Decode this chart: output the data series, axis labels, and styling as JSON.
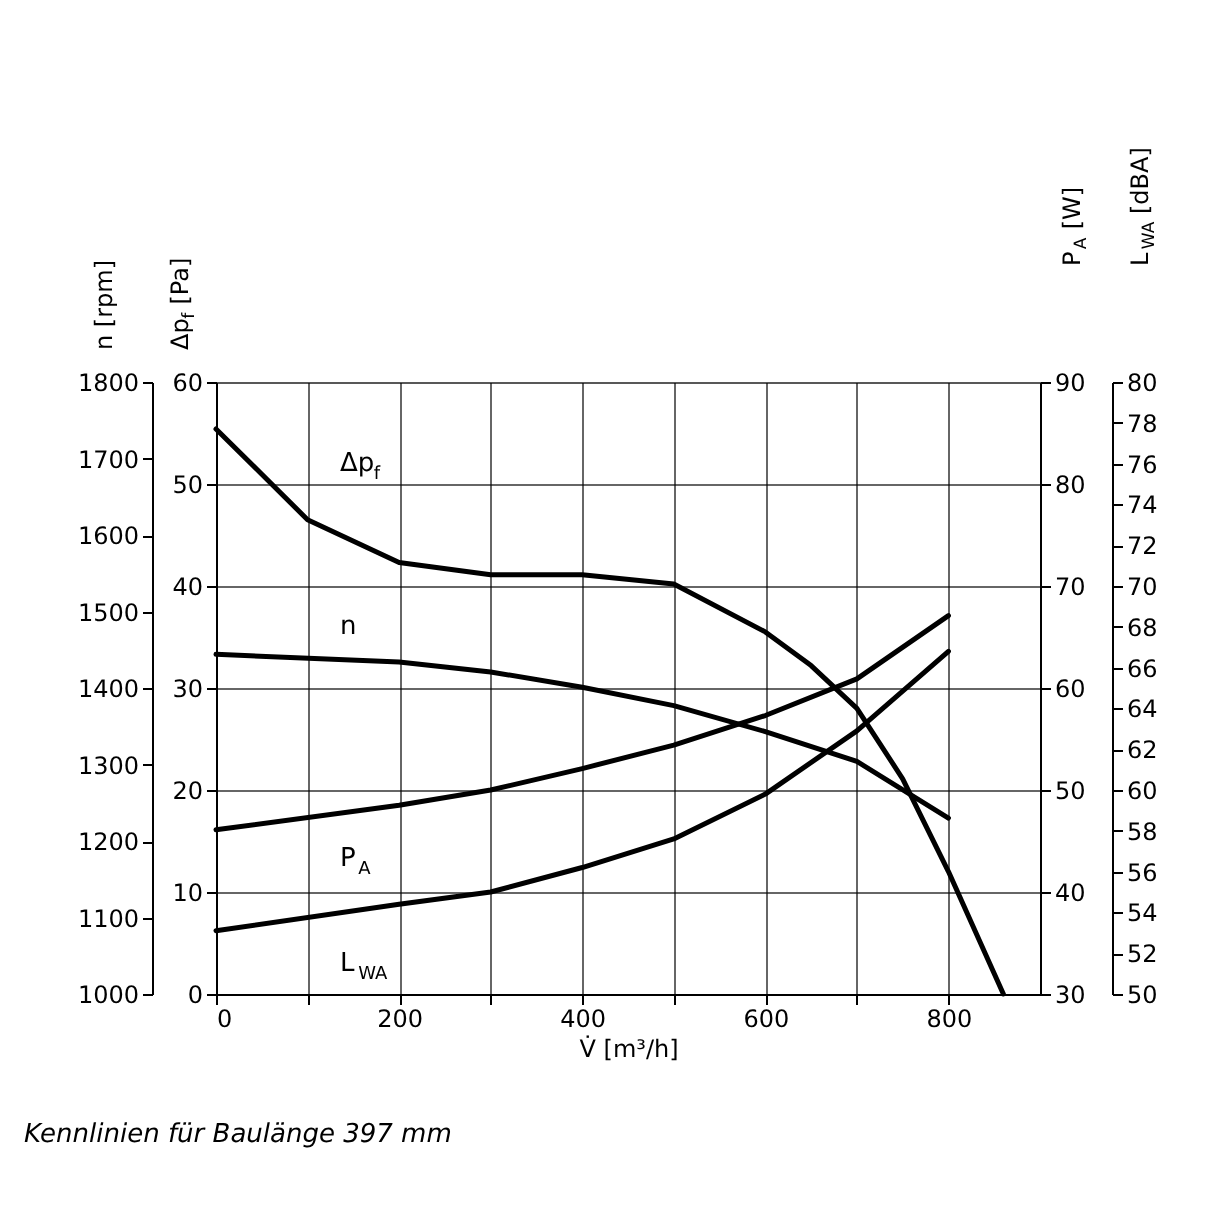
{
  "chart_data": [
    {
      "type": "line",
      "xlabel": "V̇ [m³/h]",
      "ylabel": "Δp$_{f}$ [Pa]",
      "y2label": "n [rpm]",
      "annotations": [
        "Kennlinien für Baulänge 397 mm"
      ],
      "xlim": [
        0,
        900
      ],
      "xticks": [
        0,
        {
          "value": 100,
          "label": null
        },
        200,
        {
          "value": 300,
          "label": null
        },
        400,
        {
          "value": 500,
          "label": null
        },
        600,
        {
          "value": 700,
          "label": null
        },
        800
      ],
      "ylim": [
        0,
        60
      ],
      "yticks": [
        0,
        10,
        20,
        30,
        40,
        50,
        60
      ],
      "y2lim": [
        1000,
        1800
      ],
      "y2ticks": [
        1000,
        1100,
        1200,
        1300,
        1400,
        1500,
        1600,
        1700,
        1800
      ],
      "grid": true,
      "marker": "none",
      "line_style": "solid",
      "series": [
        {
          "name": "Δp$_{f}$",
          "color": "#000000",
          "x": [
            0,
            100,
            200,
            300,
            400,
            500,
            600,
            650,
            700,
            750,
            800,
            860
          ],
          "values": [
            55.4,
            46.5,
            42.3,
            41.1,
            41.1,
            40.2,
            35.5,
            32.2,
            28,
            21.1,
            12,
            0
          ]
        },
        {
          "name": "n",
          "color": "#000000",
          "axis": "y2",
          "x": [
            0,
            200,
            300,
            400,
            500,
            600,
            700,
            800
          ],
          "values": [
            1444,
            1434,
            1421,
            1401,
            1377,
            1343,
            1304,
            1230
          ]
        }
      ]
    },
    {
      "type": "line",
      "ylabel": "P$_{A}$ [W]",
      "y2label": "L$_{WA}$ [dBA]",
      "xlim": [
        0,
        900
      ],
      "tick_labels": "y",
      "ylim": [
        30,
        90
      ],
      "yticks": [
        30,
        40,
        50,
        60,
        70,
        80,
        90
      ],
      "y2lim": [
        50,
        80
      ],
      "y2ticks": [
        50,
        52,
        54,
        56,
        58,
        60,
        62,
        64,
        66,
        68,
        70,
        72,
        74,
        76,
        78,
        80
      ],
      "marker": "none",
      "line_style": "solid",
      "series": [
        {
          "name": "P$_{A}$",
          "color": "#000000",
          "x": [
            0,
            200,
            300,
            400,
            500,
            600,
            700,
            800
          ],
          "values": [
            46.1,
            48.5,
            50,
            52.1,
            54.4,
            57.3,
            60.9,
            67.1
          ]
        },
        {
          "name": "L$_{WA}$",
          "color": "#000000",
          "axis": "y2",
          "x": [
            0,
            200,
            300,
            400,
            500,
            600,
            700,
            800
          ],
          "values": [
            53.1,
            54.4,
            55,
            56.2,
            57.6,
            59.8,
            62.9,
            66.8
          ]
        }
      ]
    }
  ]
}
